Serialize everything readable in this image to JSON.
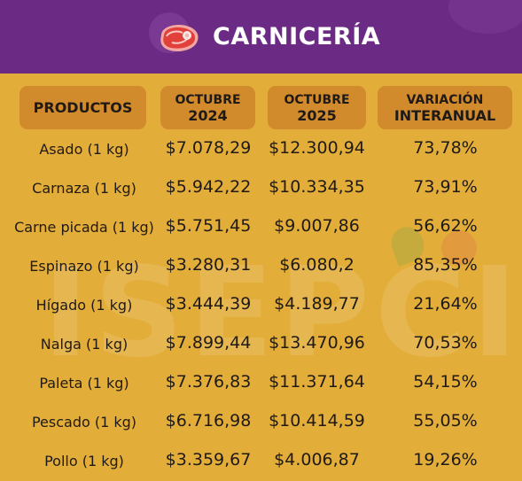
{
  "header": {
    "title": "CARNICERÍA",
    "icon": "meat-steak-icon",
    "bg_color": "#6b2b84"
  },
  "table": {
    "columns": {
      "product": "PRODUCTOS",
      "oct2024": {
        "line1": "OCTUBRE",
        "line2": "2024"
      },
      "oct2025": {
        "line1": "OCTUBRE",
        "line2": "2025"
      },
      "variation": {
        "line1": "VARIACIÓN",
        "line2": "INTERANUAL"
      }
    },
    "rows": [
      {
        "product": "Asado (1 kg)",
        "oct2024": "$7.078,29",
        "oct2025": "$12.300,94",
        "variation": "73,78%"
      },
      {
        "product": "Carnaza (1 kg)",
        "oct2024": "$5.942,22",
        "oct2025": "$10.334,35",
        "variation": "73,91%"
      },
      {
        "product": "Carne picada (1 kg)",
        "oct2024": "$5.751,45",
        "oct2025": "$9.007,86",
        "variation": "56,62%"
      },
      {
        "product": "Espinazo (1 kg)",
        "oct2024": "$3.280,31",
        "oct2025": "$6.080,2",
        "variation": "85,35%"
      },
      {
        "product": "Hígado (1 kg)",
        "oct2024": "$3.444,39",
        "oct2025": "$4.189,77",
        "variation": "21,64%"
      },
      {
        "product": "Nalga (1 kg)",
        "oct2024": "$7.899,44",
        "oct2025": "$13.470,96",
        "variation": "70,53%"
      },
      {
        "product": "Paleta (1 kg)",
        "oct2024": "$7.376,83",
        "oct2025": "$11.371,64",
        "variation": "54,15%"
      },
      {
        "product": "Pescado (1 kg)",
        "oct2024": "$6.716,98",
        "oct2025": "$10.414,59",
        "variation": "55,05%"
      },
      {
        "product": "Pollo (1 kg)",
        "oct2024": "$3.359,67",
        "oct2025": "$4.006,87",
        "variation": "19,26%"
      }
    ]
  },
  "watermark": "ISEPCI",
  "colors": {
    "background": "#e3ad3a",
    "header_pill": "#d18b2c",
    "header_bar": "#6b2b84"
  }
}
